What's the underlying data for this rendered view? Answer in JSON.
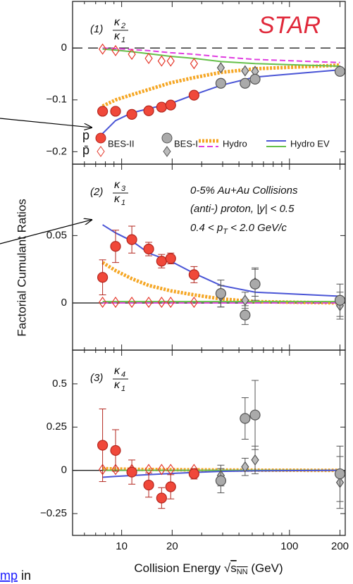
{
  "chart_data": {
    "type": "line",
    "title": "STAR",
    "ylabel": "Factorial Cumulant Ratios",
    "xlabel": [
      "Collision Energy ",
      "√",
      "s",
      "NN",
      " (GeV)"
    ],
    "log_x": true,
    "xlim": [
      5.1,
      215
    ],
    "xticks": [
      10,
      20,
      100,
      200
    ],
    "xminor": [
      6,
      7,
      8,
      9,
      30,
      40,
      50,
      60,
      70,
      80,
      90
    ],
    "particles": [
      "p",
      "p̄"
    ],
    "legend": [
      {
        "name": "BES-II",
        "styles": [
          {
            "marker": "circle",
            "color": "#b3261e",
            "fill": "#f0483a"
          },
          {
            "marker": "diamond",
            "color": "#e5392c",
            "fill": "none"
          }
        ]
      },
      {
        "name": "BES-I",
        "styles": [
          {
            "marker": "circle",
            "color": "#555555",
            "fill": "#aaaaaa"
          },
          {
            "marker": "diamond",
            "color": "#555555",
            "fill": "#bbbbbb"
          }
        ]
      },
      {
        "name": "Hydro",
        "styles": [
          {
            "line": "dotted",
            "color": "#f5a623"
          },
          {
            "line": "dashed",
            "color": "#e03ee0"
          }
        ]
      },
      {
        "name": "Hydro EV",
        "styles": [
          {
            "line": "solid",
            "color": "#4a55d6"
          },
          {
            "line": "solid",
            "color": "#66c04a"
          }
        ]
      }
    ],
    "annotations": [
      "0-5% Au+Au Collisions",
      "(anti-) proton, |y| < 0.5",
      [
        "0.4 < p",
        "T",
        " < 2.0 GeV/c"
      ]
    ],
    "panels": [
      {
        "label": "(1)",
        "symbol": "κ",
        "num": "2",
        "den": "1",
        "ylim": [
          -0.224,
          0.09
        ],
        "yticks": [
          {
            "value": -0.2,
            "label": "−0.2"
          },
          {
            "value": -0.1,
            "label": "−0.1"
          },
          0
        ],
        "series": [
          {
            "style": [
              2,
              0
            ],
            "x": [
              7.7,
              9.2,
              11.5,
              14.5,
              19.6,
              27,
              39,
              62.4,
              200
            ],
            "values": [
              -0.112,
              -0.1,
              -0.09,
              -0.08,
              -0.067,
              -0.057,
              -0.047,
              -0.04,
              -0.033
            ]
          },
          {
            "style": [
              2,
              1
            ],
            "x": [
              7.7,
              9.2,
              11.5,
              14.5,
              19.6,
              27,
              39,
              62.4,
              200
            ],
            "values": [
              0,
              -0.001,
              -0.003,
              -0.005,
              -0.009,
              -0.012,
              -0.017,
              -0.022,
              -0.028
            ]
          },
          {
            "style": [
              3,
              1
            ],
            "x": [
              7.7,
              9.2,
              11.5,
              14.5,
              19.6,
              27,
              39,
              62.4,
              200
            ],
            "values": [
              -0.002,
              -0.004,
              -0.007,
              -0.011,
              -0.016,
              -0.02,
              -0.026,
              -0.03,
              -0.035
            ]
          },
          {
            "style": [
              3,
              0
            ],
            "x": [
              7.7,
              9.2,
              11.5,
              14.5,
              19.6,
              27,
              39,
              62.4,
              200
            ],
            "values": [
              -0.165,
              -0.14,
              -0.125,
              -0.117,
              -0.107,
              -0.09,
              -0.072,
              -0.056,
              -0.042
            ]
          },
          {
            "style": [
              0,
              1
            ],
            "x": [
              7.7,
              9.2,
              11.5,
              14.5,
              17.3,
              19.6,
              27
            ],
            "values": [
              -0.002,
              -0.005,
              -0.012,
              -0.02,
              -0.025,
              -0.025,
              -0.03
            ]
          },
          {
            "style": [
              0,
              0
            ],
            "x": [
              7.7,
              9.2,
              11.5,
              14.5,
              17.3,
              19.6,
              27
            ],
            "values": [
              -0.122,
              -0.122,
              -0.128,
              -0.121,
              -0.114,
              -0.11,
              -0.091
            ]
          },
          {
            "style": [
              1,
              1
            ],
            "x": [
              39,
              54.4,
              62.4,
              200
            ],
            "values": [
              -0.038,
              -0.044,
              -0.045,
              -0.044
            ]
          },
          {
            "style": [
              1,
              0
            ],
            "x": [
              39,
              54.4,
              62.4,
              200
            ],
            "values": [
              -0.068,
              -0.068,
              -0.06,
              -0.045
            ]
          }
        ]
      },
      {
        "label": "(2)",
        "symbol": "κ",
        "num": "3",
        "den": "1",
        "ylim": [
          -0.035,
          0.103
        ],
        "yticks": [
          0,
          0.05
        ],
        "series": [
          {
            "style": [
              2,
              0
            ],
            "x": [
              7.7,
              9.2,
              11.5,
              14.5,
              19.6,
              27,
              39,
              62.4,
              200
            ],
            "values": [
              0.03,
              0.024,
              0.018,
              0.013,
              0.009,
              0.006,
              0.003,
              0.001,
              0
            ]
          },
          {
            "style": [
              2,
              1
            ],
            "x": [
              7.7,
              9.2,
              11.5,
              14.5,
              19.6,
              27,
              39,
              62.4,
              200
            ],
            "values": [
              0,
              0,
              0,
              0,
              0,
              0,
              0,
              0,
              0
            ]
          },
          {
            "style": [
              3,
              1
            ],
            "x": [
              7.7,
              9.2,
              11.5,
              14.5,
              19.6,
              27,
              39,
              62.4,
              200
            ],
            "values": [
              0.001,
              0.001,
              0.001,
              0.001,
              0.001,
              0.001,
              0.001,
              0.001,
              0.001
            ]
          },
          {
            "style": [
              3,
              0
            ],
            "x": [
              7.7,
              9.2,
              11.5,
              14.5,
              19.6,
              27,
              39,
              62.4,
              200
            ],
            "values": [
              0.058,
              0.052,
              0.046,
              0.037,
              0.031,
              0.022,
              0.013,
              0.008,
              0.005
            ]
          },
          {
            "style": [
              0,
              1
            ],
            "x": [
              7.7,
              9.2,
              11.5,
              14.5,
              17.3,
              19.6,
              27
            ],
            "values": [
              0.0005,
              0.0005,
              0.0005,
              0.0005,
              0.0005,
              0.0005,
              0.0005
            ]
          },
          {
            "style": [
              0,
              0
            ],
            "x": [
              7.7,
              9.2,
              11.5,
              14.5,
              17.3,
              19.6,
              27
            ],
            "values": [
              0.019,
              0.042,
              0.047,
              0.04,
              0.031,
              0.033,
              0.021
            ],
            "errors": [
              0.013,
              0.012,
              0.01,
              0.005,
              0.005,
              0.004,
              0.006
            ]
          },
          {
            "style": [
              1,
              1
            ],
            "x": [
              39,
              54.4,
              62.4,
              200
            ],
            "values": [
              0.005,
              0.002,
              0.015,
              -0.002
            ],
            "errors": [
              0.008,
              0.006,
              0.01,
              0.01
            ]
          },
          {
            "style": [
              1,
              0
            ],
            "x": [
              39,
              54.4,
              62.4,
              200
            ],
            "values": [
              0.007,
              -0.009,
              0.014,
              0.002
            ],
            "errors": [
              0.01,
              0.007,
              0.012,
              0.012
            ]
          }
        ]
      },
      {
        "label": "(3)",
        "symbol": "κ",
        "num": "4",
        "den": "1",
        "ylim": [
          -0.376,
          0.695
        ],
        "yticks": [
          {
            "value": -0.25,
            "label": "−0.25"
          },
          0,
          0.25,
          0.5
        ],
        "series": [
          {
            "style": [
              2,
              0
            ],
            "x": [
              7.7,
              9.2,
              11.5,
              14.5,
              19.6,
              27,
              39,
              62.4,
              200
            ],
            "values": [
              0.01,
              0.008,
              0.006,
              0.005,
              0.004,
              0.003,
              0.002,
              0.001,
              0
            ]
          },
          {
            "style": [
              2,
              1
            ],
            "x": [
              7.7,
              9.2,
              11.5,
              14.5,
              19.6,
              27,
              39,
              62.4,
              200
            ],
            "values": [
              0,
              0,
              0,
              0,
              0,
              0,
              0,
              0,
              0
            ]
          },
          {
            "style": [
              3,
              1
            ],
            "x": [
              7.7,
              9.2,
              11.5,
              14.5,
              19.6,
              27,
              39,
              62.4,
              200
            ],
            "values": [
              0,
              0,
              0,
              0,
              0,
              0,
              0,
              0,
              0
            ]
          },
          {
            "style": [
              3,
              0
            ],
            "x": [
              7.7,
              9.2,
              11.5,
              14.5,
              19.6,
              27,
              39,
              62.4,
              200
            ],
            "values": [
              -0.04,
              -0.035,
              -0.03,
              -0.025,
              -0.018,
              -0.012,
              -0.006,
              -0.003,
              0
            ]
          },
          {
            "style": [
              0,
              1
            ],
            "x": [
              7.7,
              9.2,
              11.5,
              14.5,
              17.3,
              19.6,
              27
            ],
            "values": [
              0.005,
              0.005,
              0.005,
              0.005,
              0.005,
              0.005,
              0.005
            ]
          },
          {
            "style": [
              0,
              0
            ],
            "x": [
              7.7,
              9.2,
              11.5,
              14.5,
              17.3,
              19.6,
              27
            ],
            "values": [
              0.145,
              0.115,
              -0.01,
              -0.085,
              -0.16,
              -0.095,
              -0.02
            ],
            "errors": [
              0.21,
              0.12,
              0.07,
              0.07,
              0.06,
              0.07,
              0.03
            ]
          },
          {
            "style": [
              1,
              1
            ],
            "x": [
              39,
              54.4,
              62.4,
              200
            ],
            "values": [
              -0.03,
              0.02,
              0.06,
              -0.07
            ],
            "errors": [
              0.06,
              0.05,
              0.08,
              0.15
            ]
          },
          {
            "style": [
              1,
              0
            ],
            "x": [
              39,
              54.4,
              62.4,
              200
            ],
            "values": [
              -0.06,
              0.3,
              0.32,
              -0.02
            ],
            "errors": [
              0.07,
              0.12,
              0.2,
              0.16
            ]
          }
        ]
      }
    ]
  },
  "fragment": {
    "link": "mp",
    "text": "in"
  }
}
